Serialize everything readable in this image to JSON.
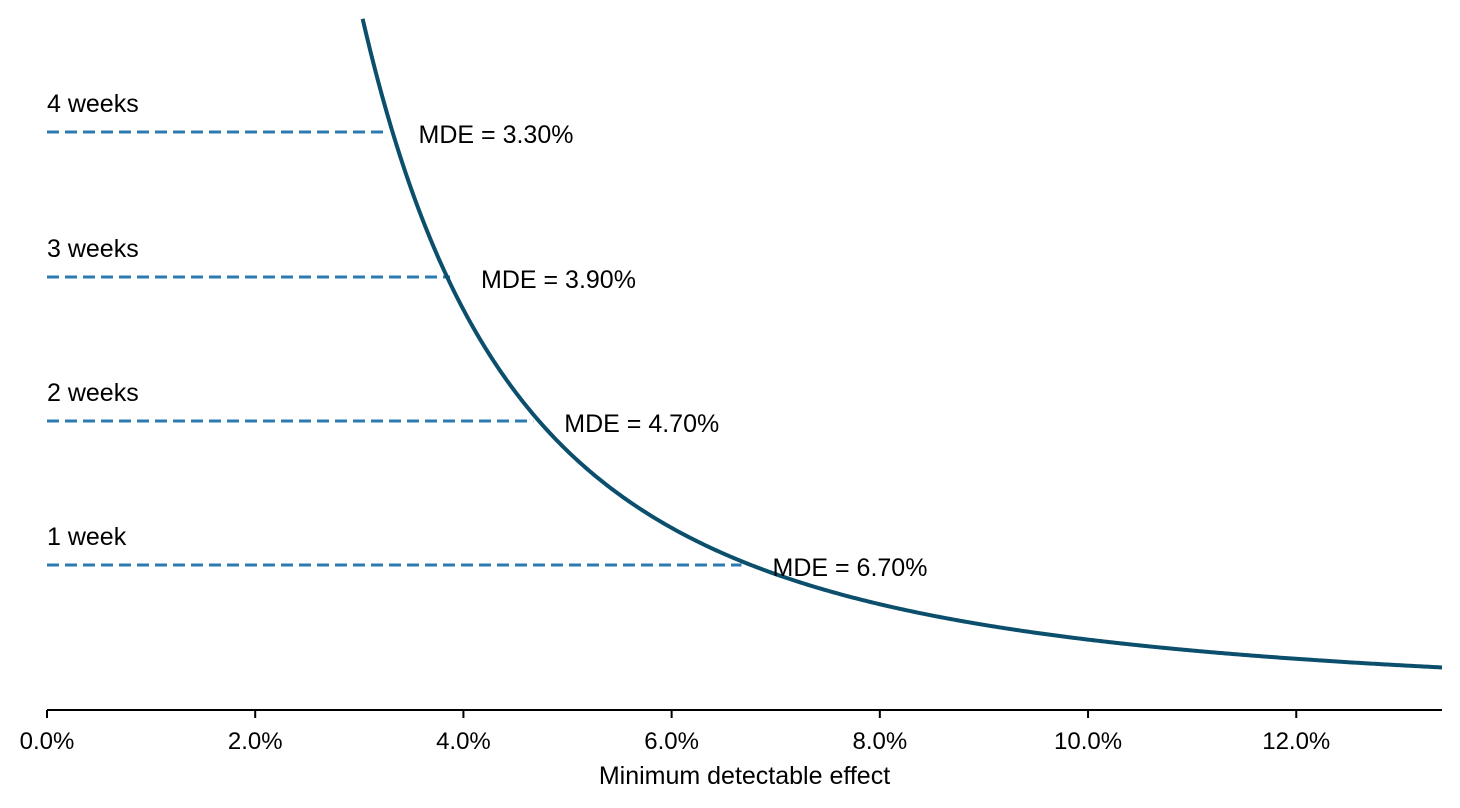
{
  "chart_data": {
    "type": "line",
    "title": "",
    "xlabel": "Minimum detectable effect",
    "ylabel": "",
    "xlim": [
      0,
      13.4
    ],
    "x_tick_values": [
      0,
      2,
      4,
      6,
      8,
      10,
      12
    ],
    "x_tick_labels": [
      "0.0%",
      "2.0%",
      "4.0%",
      "6.0%",
      "8.0%",
      "10.0%",
      "12.0%"
    ],
    "y_axis_visible": false,
    "grid": false,
    "legend": "none",
    "curve": {
      "relationship": "required weeks proportional to 1 / MDE^2",
      "points": [
        {
          "x": 3.3,
          "y": 4
        },
        {
          "x": 3.9,
          "y": 3
        },
        {
          "x": 4.7,
          "y": 2
        },
        {
          "x": 6.7,
          "y": 1
        }
      ]
    },
    "reference_lines": [
      {
        "label": "4 weeks",
        "weeks": 4,
        "mde": 3.3,
        "annotation": "MDE = 3.30%"
      },
      {
        "label": "3 weeks",
        "weeks": 3,
        "mde": 3.9,
        "annotation": "MDE = 3.90%"
      },
      {
        "label": "2 weeks",
        "weeks": 2,
        "mde": 4.7,
        "annotation": "MDE = 4.70%"
      },
      {
        "label": "1 week",
        "weeks": 1,
        "mde": 6.7,
        "annotation": "MDE = 6.70%"
      }
    ],
    "colors": {
      "curve": "#0b4f6c",
      "reference_line": "#2b7bb2",
      "axis": "#000000"
    }
  }
}
